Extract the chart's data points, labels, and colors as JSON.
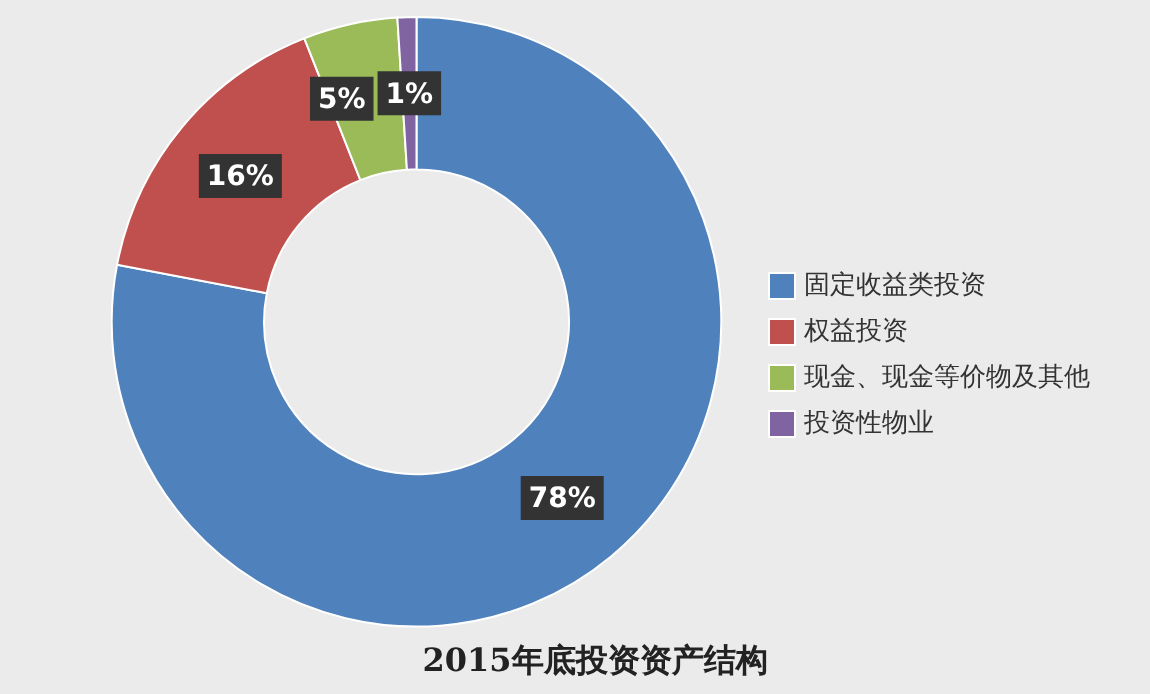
{
  "chart_data": {
    "type": "donut",
    "title": "2015年底投资资产结构",
    "categories": [
      "固定收益类投资",
      "权益投资",
      "现金、现金等价物及其他",
      "投资性物业"
    ],
    "values": [
      78,
      16,
      5,
      1
    ],
    "colors": [
      "#4f81bd",
      "#c0504d",
      "#9bbb59",
      "#8064a2"
    ],
    "value_labels": [
      "78%",
      "16%",
      "5%",
      "1%"
    ],
    "legend": "right"
  }
}
